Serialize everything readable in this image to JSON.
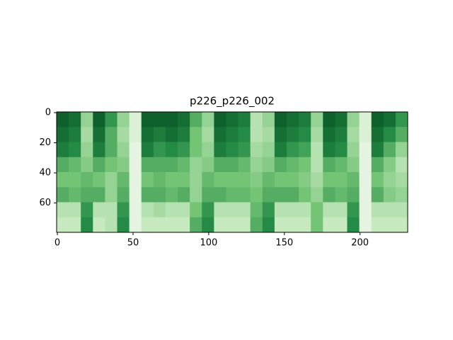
{
  "chart_data": {
    "type": "heatmap",
    "title": "p226_p226_002",
    "colormap": [
      "#f7fcf5",
      "#c7e9c0",
      "#74c476",
      "#238b45",
      "#00441b"
    ],
    "xlim": [
      -0.5,
      231.5
    ],
    "ylim": [
      79.5,
      -0.5
    ],
    "xticks": [
      0,
      50,
      100,
      150,
      200
    ],
    "yticks": [
      0,
      20,
      40,
      60
    ],
    "values": [
      [
        0.9,
        0.85,
        0.8,
        0.6,
        0.5,
        0.6,
        0.3,
        0.25
      ],
      [
        0.85,
        0.8,
        0.75,
        0.55,
        0.5,
        0.55,
        0.3,
        0.25
      ],
      [
        0.4,
        0.35,
        0.4,
        0.45,
        0.55,
        0.6,
        0.7,
        0.75
      ],
      [
        0.9,
        0.85,
        0.8,
        0.6,
        0.5,
        0.6,
        0.3,
        0.25
      ],
      [
        0.7,
        0.6,
        0.6,
        0.5,
        0.4,
        0.4,
        0.3,
        0.3
      ],
      [
        0.4,
        0.35,
        0.4,
        0.45,
        0.55,
        0.6,
        0.7,
        0.75
      ],
      [
        0.15,
        0.15,
        0.1,
        0.1,
        0.1,
        0.1,
        0.1,
        0.1
      ],
      [
        0.9,
        0.85,
        0.8,
        0.6,
        0.5,
        0.6,
        0.3,
        0.25
      ],
      [
        0.9,
        0.8,
        0.7,
        0.6,
        0.55,
        0.6,
        0.35,
        0.25
      ],
      [
        0.9,
        0.85,
        0.75,
        0.6,
        0.5,
        0.55,
        0.3,
        0.25
      ],
      [
        0.85,
        0.8,
        0.7,
        0.55,
        0.5,
        0.6,
        0.3,
        0.25
      ],
      [
        0.6,
        0.5,
        0.5,
        0.4,
        0.4,
        0.4,
        0.5,
        0.6
      ],
      [
        0.4,
        0.35,
        0.4,
        0.45,
        0.55,
        0.6,
        0.7,
        0.75
      ],
      [
        0.9,
        0.85,
        0.8,
        0.6,
        0.5,
        0.6,
        0.3,
        0.25
      ],
      [
        0.85,
        0.8,
        0.75,
        0.6,
        0.5,
        0.55,
        0.3,
        0.25
      ],
      [
        0.8,
        0.75,
        0.7,
        0.55,
        0.5,
        0.55,
        0.3,
        0.25
      ],
      [
        0.3,
        0.3,
        0.35,
        0.4,
        0.45,
        0.5,
        0.55,
        0.6
      ],
      [
        0.4,
        0.35,
        0.4,
        0.45,
        0.55,
        0.6,
        0.7,
        0.75
      ],
      [
        0.9,
        0.85,
        0.8,
        0.6,
        0.5,
        0.6,
        0.3,
        0.25
      ],
      [
        0.85,
        0.8,
        0.7,
        0.55,
        0.5,
        0.6,
        0.3,
        0.25
      ],
      [
        0.8,
        0.75,
        0.65,
        0.5,
        0.45,
        0.5,
        0.3,
        0.25
      ],
      [
        0.4,
        0.35,
        0.3,
        0.3,
        0.35,
        0.4,
        0.5,
        0.5
      ],
      [
        0.9,
        0.85,
        0.8,
        0.6,
        0.5,
        0.6,
        0.3,
        0.25
      ],
      [
        0.85,
        0.8,
        0.75,
        0.55,
        0.5,
        0.55,
        0.3,
        0.25
      ],
      [
        0.4,
        0.35,
        0.4,
        0.45,
        0.55,
        0.6,
        0.7,
        0.75
      ],
      [
        0.15,
        0.15,
        0.1,
        0.1,
        0.1,
        0.1,
        0.1,
        0.1
      ],
      [
        0.9,
        0.85,
        0.8,
        0.6,
        0.5,
        0.6,
        0.3,
        0.25
      ],
      [
        0.85,
        0.75,
        0.6,
        0.45,
        0.4,
        0.45,
        0.3,
        0.25
      ],
      [
        0.7,
        0.6,
        0.4,
        0.3,
        0.35,
        0.4,
        0.3,
        0.25
      ]
    ]
  }
}
